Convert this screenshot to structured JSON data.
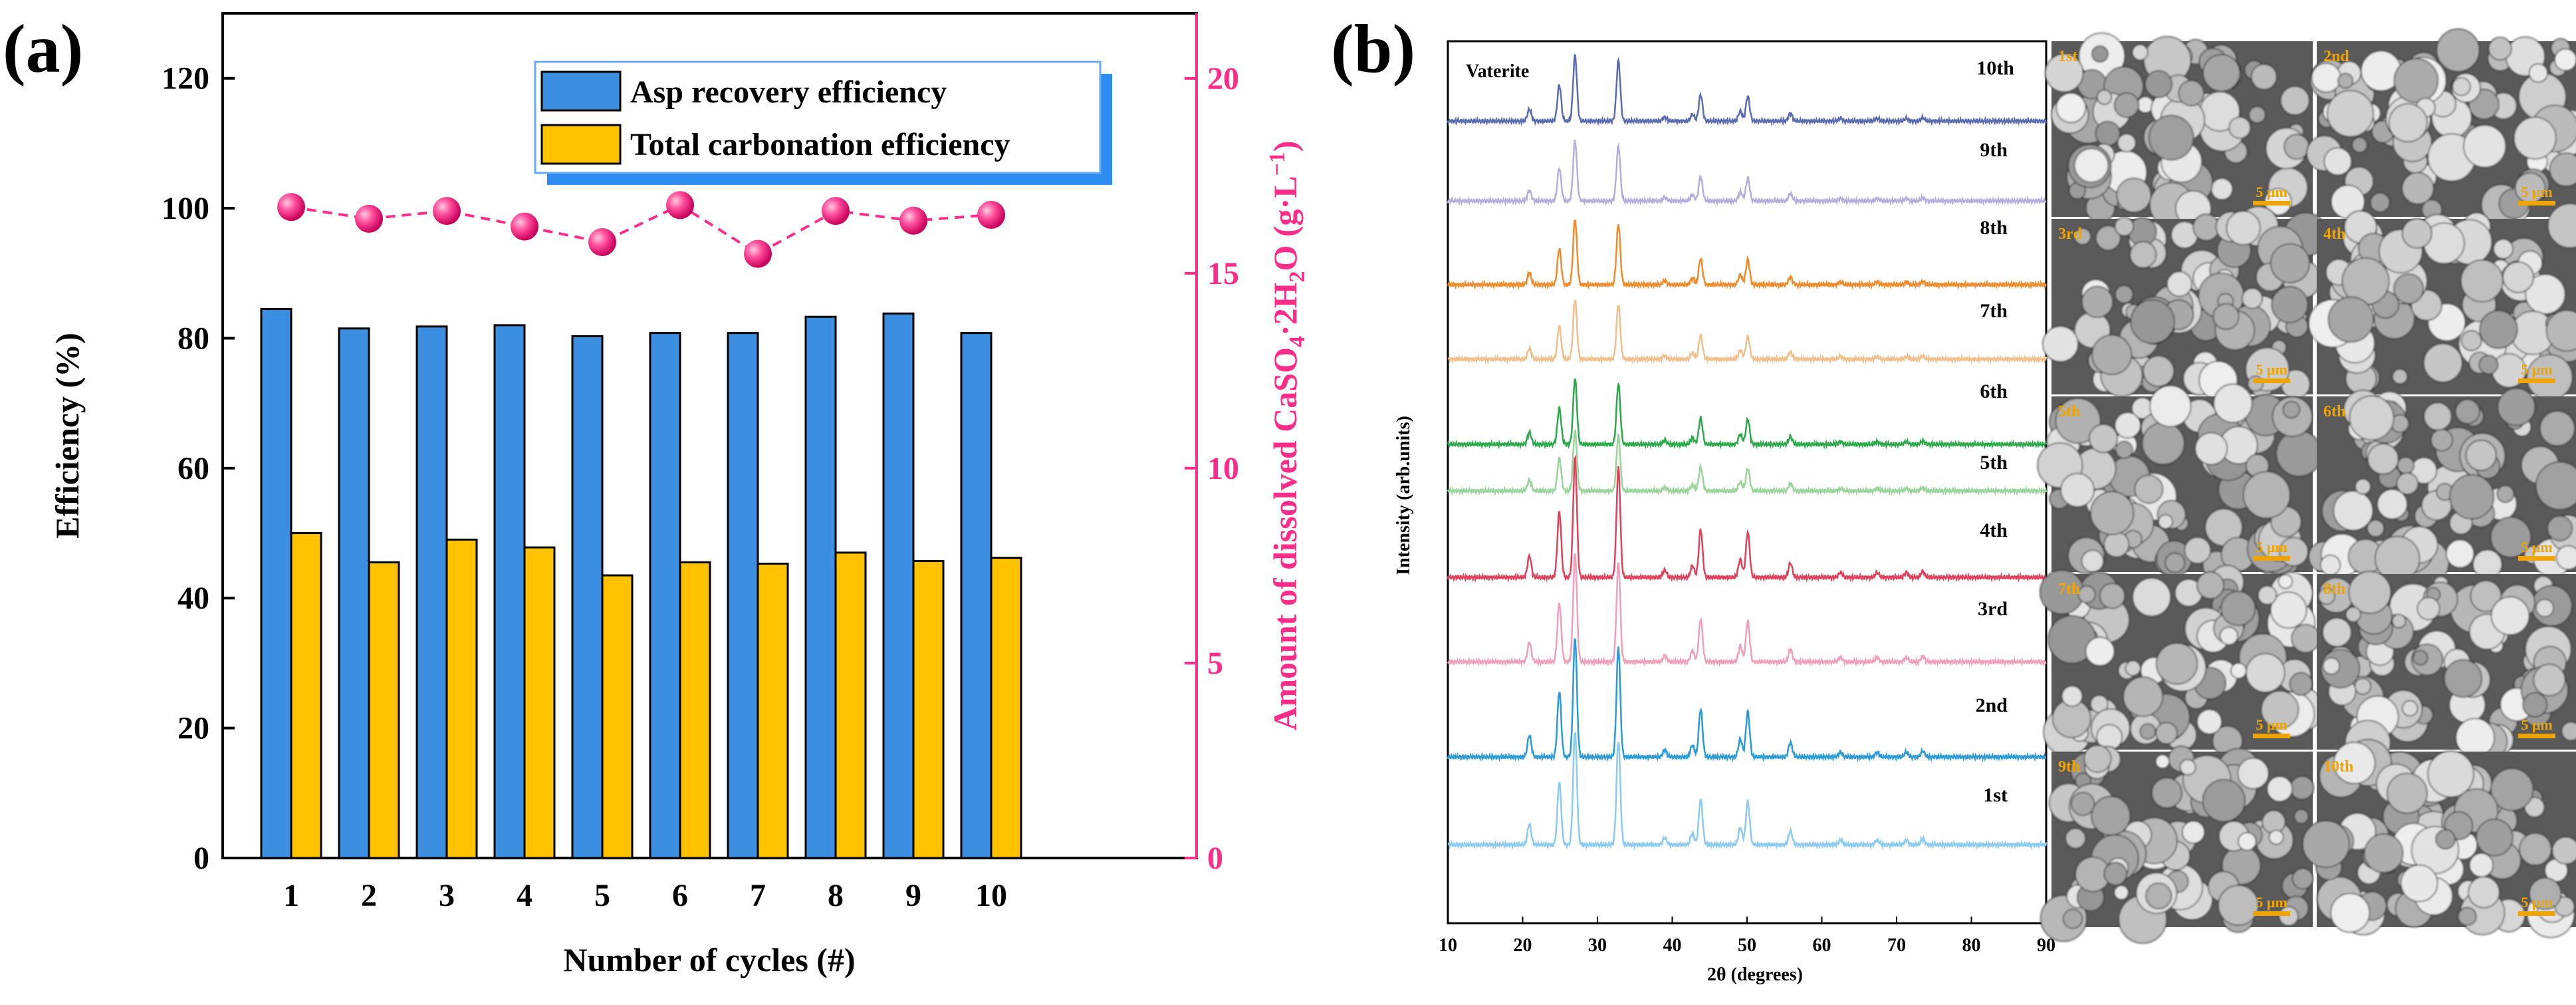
{
  "panel_a": {
    "label": "(a)",
    "chart_data": {
      "type": "bar",
      "xlabel": "Number of cycles (#)",
      "ylabel": "Efficiency (%)",
      "ylabel_right_parts": [
        "Amount of dissolved CaSO",
        "4",
        "·2H",
        "2",
        "O (g·L",
        "−1",
        ")"
      ],
      "ylim": [
        0,
        130
      ],
      "y_ticks": [
        0,
        20,
        40,
        60,
        80,
        100,
        120
      ],
      "y2lim": [
        0,
        21.67
      ],
      "y2_ticks": [
        0,
        5,
        10,
        15,
        20
      ],
      "categories": [
        "1",
        "2",
        "3",
        "4",
        "5",
        "6",
        "7",
        "8",
        "9",
        "10"
      ],
      "series": [
        {
          "name": "Asp recovery efficiency",
          "type": "bar",
          "color": "#3c8fe0",
          "values": [
            84.5,
            81.5,
            81.8,
            82.0,
            80.3,
            80.8,
            80.8,
            83.3,
            83.8,
            80.8
          ]
        },
        {
          "name": "Total carbonation efficiency",
          "type": "bar",
          "color": "#ffc200",
          "values": [
            50.0,
            45.5,
            49.0,
            47.8,
            43.5,
            45.5,
            45.3,
            47.0,
            45.7,
            46.2
          ]
        },
        {
          "name": "Dissolved CaSO4·2H2O",
          "type": "line-dashed",
          "axis": "right",
          "color": "#ff2d8a",
          "values": [
            16.7,
            16.4,
            16.6,
            16.2,
            15.8,
            16.75,
            15.5,
            16.6,
            16.35,
            16.5
          ]
        }
      ],
      "legend": {
        "placement": "top-right",
        "items": [
          "Asp recovery efficiency",
          "Total carbonation efficiency"
        ]
      }
    }
  },
  "panel_b": {
    "label": "(b)",
    "chart_data": {
      "type": "line",
      "title": "Vaterite",
      "xlabel": "2θ (degrees)",
      "ylabel": "Intensity (arb.units)",
      "xlim": [
        10,
        90
      ],
      "x_ticks": [
        10,
        20,
        30,
        40,
        50,
        60,
        70,
        80,
        90
      ],
      "series": [
        {
          "name": "10th",
          "color": "#5a6bb0",
          "scale": 0.55
        },
        {
          "name": "9th",
          "color": "#b4aedc",
          "scale": 0.5
        },
        {
          "name": "8th",
          "color": "#f08a2a",
          "scale": 0.55
        },
        {
          "name": "7th",
          "color": "#f0bf8c",
          "scale": 0.5
        },
        {
          "name": "6th",
          "color": "#2aa84a",
          "scale": 0.55
        },
        {
          "name": "5th",
          "color": "#9ad49a",
          "scale": 0.5
        },
        {
          "name": "4th",
          "color": "#e0405a",
          "scale": 1.0
        },
        {
          "name": "3rd",
          "color": "#f0a0b8",
          "scale": 0.9
        },
        {
          "name": "2nd",
          "color": "#2a9ad8",
          "scale": 1.0
        },
        {
          "name": "1st",
          "color": "#8ccaf0",
          "scale": 0.95
        }
      ],
      "peaks": [
        {
          "pos": 20.9,
          "h": 0.18
        },
        {
          "pos": 24.9,
          "h": 0.55
        },
        {
          "pos": 27.0,
          "h": 1.0
        },
        {
          "pos": 32.8,
          "h": 0.92
        },
        {
          "pos": 39.0,
          "h": 0.06
        },
        {
          "pos": 42.7,
          "h": 0.1
        },
        {
          "pos": 43.8,
          "h": 0.4
        },
        {
          "pos": 49.1,
          "h": 0.15
        },
        {
          "pos": 50.1,
          "h": 0.38
        },
        {
          "pos": 55.8,
          "h": 0.12
        },
        {
          "pos": 62.5,
          "h": 0.04
        },
        {
          "pos": 67.4,
          "h": 0.04
        },
        {
          "pos": 71.3,
          "h": 0.04
        },
        {
          "pos": 73.5,
          "h": 0.05
        }
      ]
    },
    "sem_images": [
      {
        "label": "1st",
        "scale_bar": "5 μm"
      },
      {
        "label": "2nd",
        "scale_bar": "5 μm"
      },
      {
        "label": "3rd",
        "scale_bar": "5 μm"
      },
      {
        "label": "4th",
        "scale_bar": "5 μm"
      },
      {
        "label": "5th",
        "scale_bar": "5 μm"
      },
      {
        "label": "6th",
        "scale_bar": "5 μm"
      },
      {
        "label": "7th",
        "scale_bar": "5 μm"
      },
      {
        "label": "8th",
        "scale_bar": "5 μm"
      },
      {
        "label": "9th",
        "scale_bar": "5 μm"
      },
      {
        "label": "10th",
        "scale_bar": "5 μm"
      }
    ]
  }
}
